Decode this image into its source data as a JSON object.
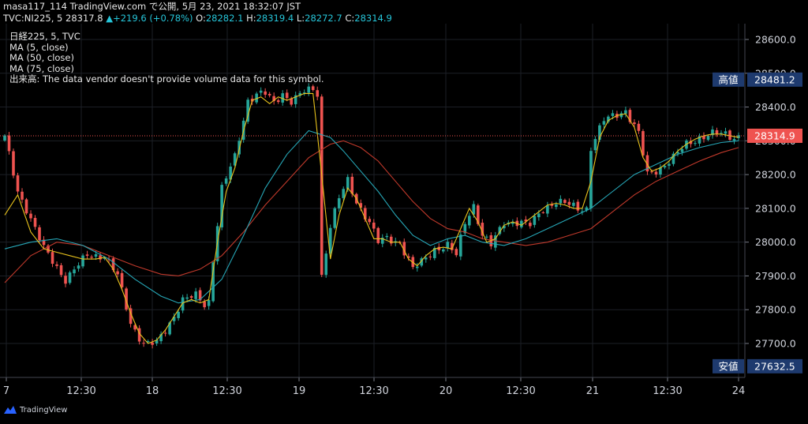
{
  "header": {
    "line1": "masa117_114 TradingView.com で公開, 5月 23, 2021 18:32:07 JST",
    "symbol": "TVC:NI225, 5",
    "close_display": "28317.8",
    "arrow": "▲",
    "change": "+219.6 (+0.78%)",
    "o_label": "O:",
    "o_value": "28282.1",
    "h_label": "H:",
    "h_value": "28319.4",
    "l_label": "L:",
    "l_value": "28272.7",
    "c_label": "C:",
    "c_value": "28314.9"
  },
  "legend": {
    "symbol": "日経225, 5, TVC",
    "ma5": "MA (5, close)",
    "ma50": "MA (50, close)",
    "ma75": "MA (75, close)",
    "volume_note": "出来高: The data vendor doesn't provide volume data for this symbol."
  },
  "footer": {
    "brand": "TradingView"
  },
  "colors": {
    "background": "#000000",
    "grid": "#1c1f26",
    "up": "#26a69a",
    "down": "#ef5350",
    "ma5": "#e8c21c",
    "ma50": "#26a6b6",
    "ma75": "#c0392b",
    "price_tag_current": "#ef5350",
    "price_tag_hl": "#1e3a6e"
  },
  "chart_data": {
    "type": "candlestick",
    "y_ticks": [
      "27700.0",
      "27800.0",
      "27900.0",
      "28000.0",
      "28100.0",
      "28200.0",
      "28300.0",
      "28400.0",
      "28500.0",
      "28600.0"
    ],
    "ylim": [
      27600,
      28650
    ],
    "x_ticks": [
      "7",
      "12:30",
      "18",
      "12:30",
      "19",
      "12:30",
      "20",
      "12:30",
      "21",
      "12:30",
      "24"
    ],
    "grid": true,
    "tags": {
      "high_label": "高値",
      "high_value": "28481.2",
      "low_label": "安値",
      "low_value": "27632.5",
      "current_value": "28314.9"
    },
    "price_path": [
      [
        0,
        28310
      ],
      [
        3,
        28150
      ],
      [
        5,
        28100
      ],
      [
        9,
        27980
      ],
      [
        14,
        27890
      ],
      [
        19,
        27960
      ],
      [
        23,
        27960
      ],
      [
        26,
        27900
      ],
      [
        29,
        27760
      ],
      [
        32,
        27700
      ],
      [
        35,
        27700
      ],
      [
        38,
        27760
      ],
      [
        41,
        27830
      ],
      [
        44,
        27840
      ],
      [
        46,
        27815
      ],
      [
        47,
        27825
      ],
      [
        48,
        27950
      ],
      [
        50,
        28160
      ],
      [
        53,
        28250
      ],
      [
        56,
        28420
      ],
      [
        58,
        28440
      ],
      [
        60,
        28440
      ],
      [
        62,
        28410
      ],
      [
        64,
        28440
      ],
      [
        66,
        28420
      ],
      [
        69,
        28445
      ],
      [
        71,
        28450
      ],
      [
        72,
        28440
      ],
      [
        73,
        27900
      ],
      [
        75,
        28050
      ],
      [
        77,
        28130
      ],
      [
        79,
        28180
      ],
      [
        81,
        28120
      ],
      [
        84,
        28060
      ],
      [
        86,
        28000
      ],
      [
        88,
        28010
      ],
      [
        91,
        28000
      ],
      [
        94,
        27920
      ],
      [
        96,
        27940
      ],
      [
        99,
        27980
      ],
      [
        102,
        27990
      ],
      [
        104,
        27960
      ],
      [
        106,
        28060
      ],
      [
        108,
        28110
      ],
      [
        110,
        28020
      ],
      [
        112,
        27990
      ],
      [
        115,
        28060
      ],
      [
        118,
        28060
      ],
      [
        121,
        28050
      ],
      [
        124,
        28100
      ],
      [
        127,
        28120
      ],
      [
        130,
        28110
      ],
      [
        132,
        28100
      ],
      [
        134,
        28100
      ],
      [
        135,
        28280
      ],
      [
        138,
        28360
      ],
      [
        141,
        28380
      ],
      [
        143,
        28390
      ],
      [
        146,
        28320
      ],
      [
        148,
        28200
      ],
      [
        151,
        28220
      ],
      [
        154,
        28250
      ],
      [
        157,
        28290
      ],
      [
        160,
        28310
      ],
      [
        163,
        28320
      ],
      [
        166,
        28320
      ],
      [
        168,
        28310
      ],
      [
        169,
        28315
      ]
    ],
    "ma5_path": [
      [
        0,
        28080
      ],
      [
        3,
        28140
      ],
      [
        6,
        28030
      ],
      [
        9,
        27980
      ],
      [
        12,
        27970
      ],
      [
        15,
        27960
      ],
      [
        18,
        27950
      ],
      [
        21,
        27950
      ],
      [
        23,
        27955
      ],
      [
        25,
        27920
      ],
      [
        27,
        27860
      ],
      [
        29,
        27790
      ],
      [
        31,
        27730
      ],
      [
        33,
        27700
      ],
      [
        35,
        27710
      ],
      [
        37,
        27740
      ],
      [
        39,
        27780
      ],
      [
        41,
        27820
      ],
      [
        43,
        27830
      ],
      [
        45,
        27820
      ],
      [
        47,
        27830
      ],
      [
        49,
        28000
      ],
      [
        51,
        28150
      ],
      [
        53,
        28220
      ],
      [
        55,
        28330
      ],
      [
        57,
        28420
      ],
      [
        59,
        28430
      ],
      [
        61,
        28410
      ],
      [
        63,
        28430
      ],
      [
        65,
        28420
      ],
      [
        67,
        28430
      ],
      [
        69,
        28440
      ],
      [
        71,
        28440
      ],
      [
        73,
        28200
      ],
      [
        75,
        27950
      ],
      [
        77,
        28080
      ],
      [
        79,
        28160
      ],
      [
        81,
        28130
      ],
      [
        83,
        28070
      ],
      [
        85,
        28010
      ],
      [
        87,
        28010
      ],
      [
        89,
        28000
      ],
      [
        91,
        28000
      ],
      [
        93,
        27950
      ],
      [
        95,
        27930
      ],
      [
        97,
        27960
      ],
      [
        99,
        27980
      ],
      [
        101,
        27985
      ],
      [
        103,
        27980
      ],
      [
        105,
        28040
      ],
      [
        107,
        28100
      ],
      [
        109,
        28060
      ],
      [
        111,
        28000
      ],
      [
        113,
        28010
      ],
      [
        115,
        28050
      ],
      [
        117,
        28060
      ],
      [
        119,
        28050
      ],
      [
        121,
        28070
      ],
      [
        123,
        28090
      ],
      [
        125,
        28110
      ],
      [
        127,
        28115
      ],
      [
        129,
        28110
      ],
      [
        131,
        28100
      ],
      [
        133,
        28100
      ],
      [
        135,
        28180
      ],
      [
        137,
        28310
      ],
      [
        139,
        28360
      ],
      [
        141,
        28375
      ],
      [
        143,
        28380
      ],
      [
        145,
        28340
      ],
      [
        147,
        28250
      ],
      [
        149,
        28210
      ],
      [
        151,
        28220
      ],
      [
        153,
        28240
      ],
      [
        155,
        28270
      ],
      [
        157,
        28290
      ],
      [
        159,
        28305
      ],
      [
        161,
        28315
      ],
      [
        163,
        28320
      ],
      [
        165,
        28320
      ],
      [
        167,
        28315
      ],
      [
        169,
        28310
      ]
    ],
    "ma50_path": [
      [
        0,
        27980
      ],
      [
        6,
        28000
      ],
      [
        12,
        28010
      ],
      [
        18,
        27990
      ],
      [
        24,
        27950
      ],
      [
        30,
        27890
      ],
      [
        36,
        27840
      ],
      [
        40,
        27820
      ],
      [
        45,
        27830
      ],
      [
        50,
        27890
      ],
      [
        55,
        28020
      ],
      [
        60,
        28160
      ],
      [
        65,
        28260
      ],
      [
        70,
        28330
      ],
      [
        75,
        28310
      ],
      [
        78,
        28270
      ],
      [
        82,
        28210
      ],
      [
        86,
        28150
      ],
      [
        90,
        28080
      ],
      [
        94,
        28020
      ],
      [
        98,
        27990
      ],
      [
        102,
        28010
      ],
      [
        106,
        28020
      ],
      [
        110,
        28000
      ],
      [
        115,
        27990
      ],
      [
        120,
        28010
      ],
      [
        125,
        28040
      ],
      [
        130,
        28070
      ],
      [
        135,
        28100
      ],
      [
        140,
        28150
      ],
      [
        145,
        28200
      ],
      [
        150,
        28230
      ],
      [
        155,
        28260
      ],
      [
        160,
        28280
      ],
      [
        165,
        28295
      ],
      [
        169,
        28300
      ]
    ],
    "ma75_path": [
      [
        0,
        27880
      ],
      [
        6,
        27960
      ],
      [
        12,
        28000
      ],
      [
        18,
        27990
      ],
      [
        24,
        27960
      ],
      [
        30,
        27930
      ],
      [
        36,
        27905
      ],
      [
        40,
        27900
      ],
      [
        45,
        27920
      ],
      [
        50,
        27960
      ],
      [
        55,
        28030
      ],
      [
        60,
        28110
      ],
      [
        65,
        28180
      ],
      [
        70,
        28250
      ],
      [
        75,
        28290
      ],
      [
        78,
        28300
      ],
      [
        82,
        28280
      ],
      [
        86,
        28240
      ],
      [
        90,
        28180
      ],
      [
        94,
        28120
      ],
      [
        98,
        28070
      ],
      [
        102,
        28040
      ],
      [
        106,
        28030
      ],
      [
        110,
        28010
      ],
      [
        115,
        28000
      ],
      [
        120,
        27990
      ],
      [
        125,
        28000
      ],
      [
        130,
        28020
      ],
      [
        135,
        28040
      ],
      [
        140,
        28090
      ],
      [
        145,
        28140
      ],
      [
        150,
        28180
      ],
      [
        155,
        28210
      ],
      [
        160,
        28240
      ],
      [
        165,
        28265
      ],
      [
        169,
        28280
      ]
    ]
  }
}
